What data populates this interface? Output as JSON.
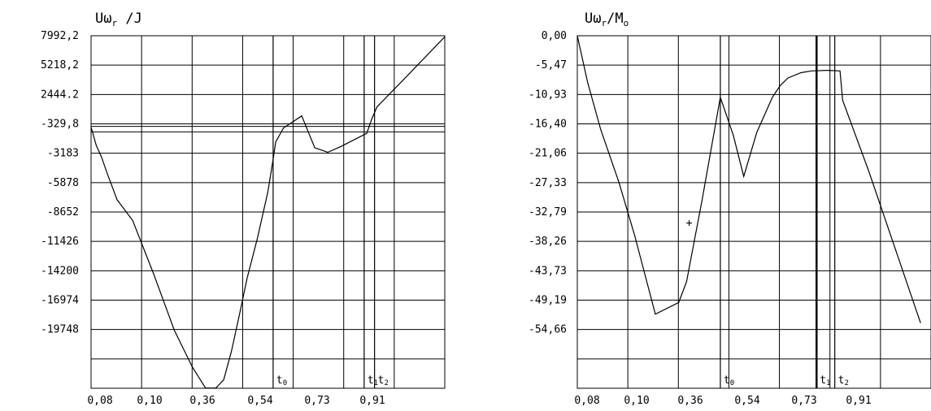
{
  "chart_data": [
    {
      "type": "line",
      "title": {
        "main": "U",
        "sym": "ω",
        "sub": "r",
        "rest": " /J"
      },
      "x_tick_labels": [
        "0,08",
        "0,10",
        "0,36",
        "0,54",
        "0,73",
        "0,91"
      ],
      "y_tick_labels": [
        "7992,2",
        "5218,2",
        "2444.2",
        "-329,8",
        "-3183",
        "-5878",
        "-8652",
        "-11426",
        "-14200",
        "-16974",
        "-19748"
      ],
      "ylim": [
        -22522,
        7992.2
      ],
      "xlim": [
        0,
        6.8
      ],
      "grid": true,
      "markers": [
        {
          "label": "t",
          "sub": "0",
          "x": 3.5
        },
        {
          "label": "t",
          "sub": "1",
          "x": 5.25
        },
        {
          "label": "t",
          "sub": "2",
          "x": 5.45
        }
      ],
      "reference_lines_y": [
        -329.8,
        140
      ],
      "series": [
        {
          "x": [
            0,
            0.1,
            0.2,
            0.3,
            0.5,
            0.8,
            1.2,
            1.6,
            1.95,
            2.2,
            2.4,
            2.55,
            2.7,
            2.85,
            3.0,
            3.2,
            3.4,
            3.5,
            3.55,
            3.7,
            4.05,
            4.3,
            4.55,
            4.8,
            5.3,
            5.4,
            5.5,
            6.0,
            6.8
          ],
          "y": [
            80,
            -1500,
            -2500,
            -3800,
            -6200,
            -8000,
            -12600,
            -17500,
            -20700,
            -22500,
            -22500,
            -21800,
            -19300,
            -16200,
            -13000,
            -9500,
            -5500,
            -2700,
            -1200,
            10,
            1050,
            -1700,
            -2100,
            -1600,
            -460,
            820,
            1850,
            4150,
            7900
          ]
        }
      ]
    },
    {
      "type": "line",
      "title": {
        "main": "U",
        "sym": "ω",
        "sub": "r",
        "rest": "/M",
        "rest_sub": "o"
      },
      "x_tick_labels": [
        "0,08",
        "0,10",
        "0,36",
        "0,54",
        "0,73",
        "0,91"
      ],
      "y_tick_labels": [
        "0,00",
        "-5,47",
        "-10,93",
        "-16,40",
        "-21,06",
        "-27,33",
        "-32,79",
        "-38,26",
        "-43,73",
        "-49,19",
        "-54,66"
      ],
      "ylim": [
        -60.13,
        0
      ],
      "xlim": [
        0,
        6.8
      ],
      "grid": true,
      "markers": [
        {
          "label": "t",
          "sub": "0",
          "x": 2.75
        },
        {
          "label": "t",
          "sub": "1",
          "x": 4.6
        },
        {
          "label": "t",
          "sub": "2",
          "x": 4.95
        }
      ],
      "series": [
        {
          "x": [
            0,
            0.2,
            0.45,
            0.8,
            1.1,
            1.5,
            1.95,
            2.1,
            2.4,
            2.75,
            3.0,
            3.2,
            3.45,
            3.75,
            3.9,
            4.05,
            4.3,
            4.5,
            4.8,
            5.05,
            5.1,
            5.6,
            6.1,
            6.6
          ],
          "y": [
            0,
            -8,
            -16,
            -25,
            -34,
            -47.5,
            -45.5,
            -42,
            -28,
            -10.5,
            -17,
            -24,
            -16.5,
            -10.5,
            -8.5,
            -7.2,
            -6.3,
            -6.0,
            -5.9,
            -6.0,
            -11,
            -23,
            -36,
            -49
          ]
        }
      ],
      "extra_marks": [
        {
          "x": 2.15,
          "y": -31.8,
          "symbol": "+"
        }
      ]
    }
  ]
}
